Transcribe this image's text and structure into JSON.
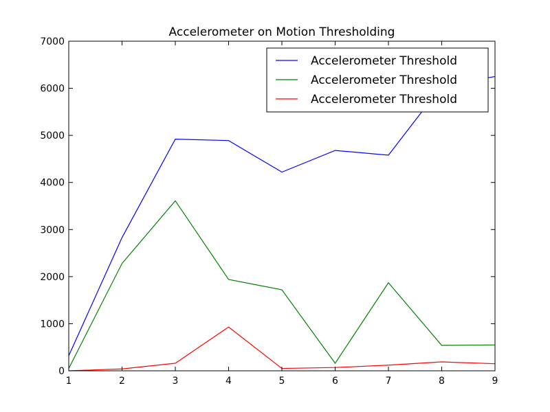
{
  "chart_data": {
    "type": "line",
    "title": "Accelerometer on Motion Thresholding",
    "xlabel": "",
    "ylabel": "",
    "x": [
      1,
      2,
      3,
      4,
      5,
      6,
      7,
      8,
      9
    ],
    "xlim": [
      1,
      9
    ],
    "ylim": [
      0,
      7000
    ],
    "xticks": [
      1,
      2,
      3,
      4,
      5,
      6,
      7,
      8,
      9
    ],
    "yticks": [
      0,
      1000,
      2000,
      3000,
      4000,
      5000,
      6000,
      7000
    ],
    "grid": false,
    "legend_position": "top-right",
    "series": [
      {
        "name": "Accelerometer Threshold",
        "color": "#0000ff",
        "values": [
          320,
          2830,
          4920,
          4890,
          4220,
          4680,
          4580,
          6050,
          6250
        ]
      },
      {
        "name": "Accelerometer Threshold",
        "color": "#008000",
        "values": [
          50,
          2280,
          3610,
          1940,
          1720,
          160,
          1870,
          540,
          550
        ]
      },
      {
        "name": "Accelerometer Threshold",
        "color": "#ff0000",
        "values": [
          0,
          40,
          160,
          930,
          50,
          70,
          120,
          190,
          150
        ]
      }
    ]
  }
}
